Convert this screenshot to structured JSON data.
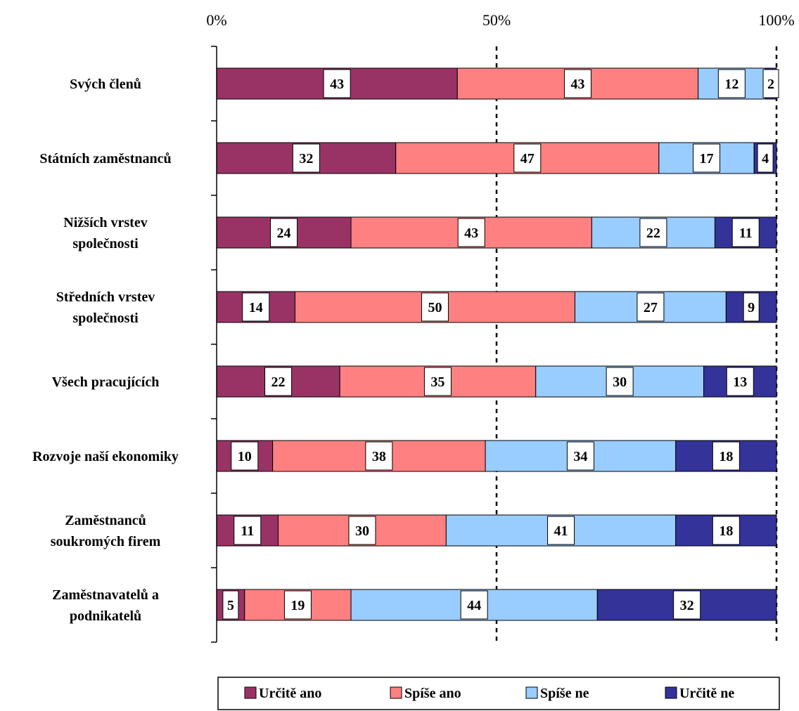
{
  "chart_data": {
    "type": "bar",
    "orientation": "horizontal",
    "stacked": "percent",
    "categories": [
      [
        "Svých členů"
      ],
      [
        "Státních zaměstnanců"
      ],
      [
        "Nižších vrstev",
        "společnosti"
      ],
      [
        "Středních vrstev",
        "společnosti"
      ],
      [
        "Všech pracujících"
      ],
      [
        "Rozvoje naší ekonomiky"
      ],
      [
        "Zaměstnanců",
        "soukromých firem"
      ],
      [
        "Zaměstnavatelů a",
        "podnikatelů"
      ]
    ],
    "series": [
      {
        "name": "Určitě ano",
        "color": "#993366",
        "values": [
          43,
          32,
          24,
          14,
          22,
          10,
          11,
          5
        ]
      },
      {
        "name": "Spíše ano",
        "color": "#FF8080",
        "values": [
          43,
          47,
          43,
          50,
          35,
          38,
          30,
          19
        ]
      },
      {
        "name": "Spíše ne",
        "color": "#99CCFF",
        "values": [
          12,
          17,
          22,
          27,
          30,
          34,
          41,
          44
        ]
      },
      {
        "name": "Určitě ne",
        "color": "#333399",
        "values": [
          2,
          4,
          11,
          9,
          13,
          18,
          18,
          32
        ]
      }
    ],
    "x_ticks": [
      "0%",
      "50%",
      "100%"
    ],
    "xlim": [
      0,
      100
    ],
    "x_axis_position": "top",
    "gridlines": "dashed at 50% and 100%",
    "legend_position": "bottom"
  }
}
